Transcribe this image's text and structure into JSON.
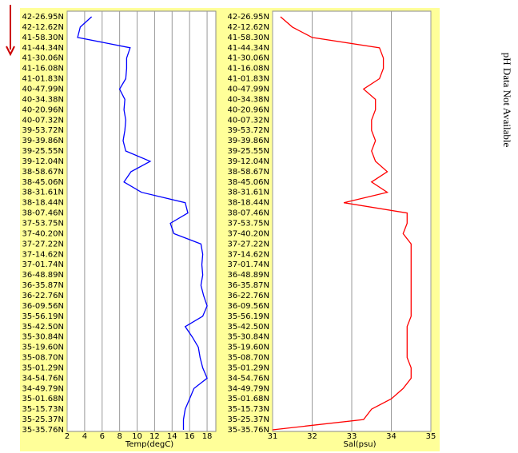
{
  "chart_data": [
    {
      "type": "line",
      "x_label": "Temp(degC)",
      "color": "#0000ff",
      "categories": [
        "42-26.95N",
        "42-12.62N",
        "41-58.30N",
        "41-44.34N",
        "41-30.06N",
        "41-16.08N",
        "41-01.83N",
        "40-47.99N",
        "40-34.38N",
        "40-20.96N",
        "40-07.32N",
        "39-53.72N",
        "39-39.86N",
        "39-25.55N",
        "39-12.04N",
        "38-58.67N",
        "38-45.06N",
        "38-31.61N",
        "38-18.44N",
        "38-07.46N",
        "37-53.75N",
        "37-40.20N",
        "37-27.22N",
        "37-14.62N",
        "37-01.74N",
        "36-48.89N",
        "36-35.87N",
        "36-22.76N",
        "36-09.56N",
        "35-56.19N",
        "35-42.50N",
        "35-30.84N",
        "35-19.60N",
        "35-08.70N",
        "35-01.29N",
        "34-54.76N",
        "34-49.79N",
        "35-01.68N",
        "35-15.73N",
        "35-25.37N",
        "35-35.76N"
      ],
      "values": [
        4.8,
        3.5,
        3.2,
        9.2,
        8.8,
        8.8,
        8.7,
        8.0,
        8.6,
        8.5,
        8.7,
        8.6,
        8.4,
        8.7,
        11.5,
        9.3,
        8.5,
        10.5,
        15.5,
        15.8,
        13.8,
        14.2,
        17.3,
        17.5,
        17.4,
        17.5,
        17.3,
        17.6,
        18.0,
        17.5,
        15.5,
        16.3,
        17.0,
        17.2,
        17.5,
        18.0,
        16.5,
        16.0,
        15.5,
        15.3,
        15.3
      ],
      "xlim": [
        2,
        19
      ],
      "xticks": [
        2,
        4,
        6,
        8,
        10,
        12,
        14,
        16,
        18
      ],
      "grid": true
    },
    {
      "type": "line",
      "x_label": "Sal(psu)",
      "color": "#ff0000",
      "categories": [
        "42-26.95N",
        "42-12.62N",
        "41-58.30N",
        "41-44.34N",
        "41-30.06N",
        "41-16.08N",
        "41-01.83N",
        "40-47.99N",
        "40-34.38N",
        "40-20.96N",
        "40-07.32N",
        "39-53.72N",
        "39-39.86N",
        "39-25.55N",
        "39-12.04N",
        "38-58.67N",
        "38-45.06N",
        "38-31.61N",
        "38-18.44N",
        "38-07.46N",
        "37-53.75N",
        "37-40.20N",
        "37-27.22N",
        "37-14.62N",
        "37-01.74N",
        "36-48.89N",
        "36-35.87N",
        "36-22.76N",
        "36-09.56N",
        "35-56.19N",
        "35-42.50N",
        "35-30.84N",
        "35-19.60N",
        "35-08.70N",
        "35-01.29N",
        "34-54.76N",
        "34-49.79N",
        "35-01.68N",
        "35-15.73N",
        "35-25.37N",
        "35-35.76N"
      ],
      "values": [
        31.2,
        31.5,
        32.0,
        33.7,
        33.8,
        33.8,
        33.7,
        33.3,
        33.6,
        33.6,
        33.5,
        33.5,
        33.6,
        33.5,
        33.6,
        33.9,
        33.5,
        33.9,
        32.8,
        34.4,
        34.4,
        34.3,
        34.5,
        34.5,
        34.5,
        34.5,
        34.5,
        34.5,
        34.5,
        34.5,
        34.4,
        34.4,
        34.4,
        34.4,
        34.5,
        34.5,
        34.3,
        34.0,
        33.5,
        33.3,
        31.0
      ],
      "xlim": [
        31,
        35
      ],
      "xticks": [
        31,
        32,
        33,
        34,
        35
      ],
      "grid": true
    }
  ],
  "side_text": "pH Data Not Available"
}
